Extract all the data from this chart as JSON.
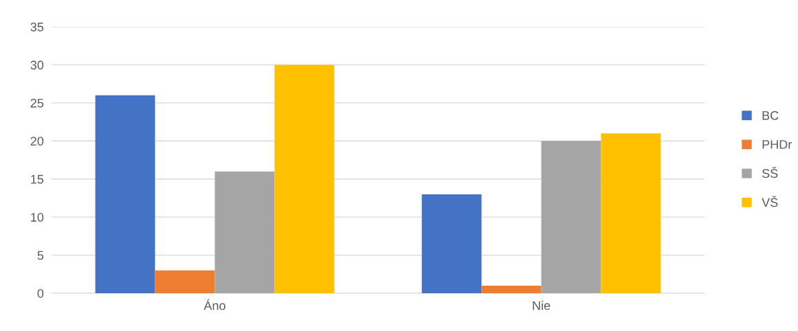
{
  "chart_data": {
    "type": "bar",
    "categories": [
      "Áno",
      "Nie"
    ],
    "series": [
      {
        "name": "BC",
        "color": "#4472c4",
        "values": [
          26,
          13
        ]
      },
      {
        "name": "PHDr",
        "color": "#ed7d31",
        "values": [
          3,
          1
        ]
      },
      {
        "name": "SŠ",
        "color": "#a5a5a5",
        "values": [
          16,
          20
        ]
      },
      {
        "name": "VŠ",
        "color": "#ffc000",
        "values": [
          30,
          21
        ]
      }
    ],
    "ylim": [
      0,
      35
    ],
    "yticks": [
      0,
      5,
      10,
      15,
      20,
      25,
      30,
      35
    ],
    "grid": "y",
    "legend": "right"
  }
}
